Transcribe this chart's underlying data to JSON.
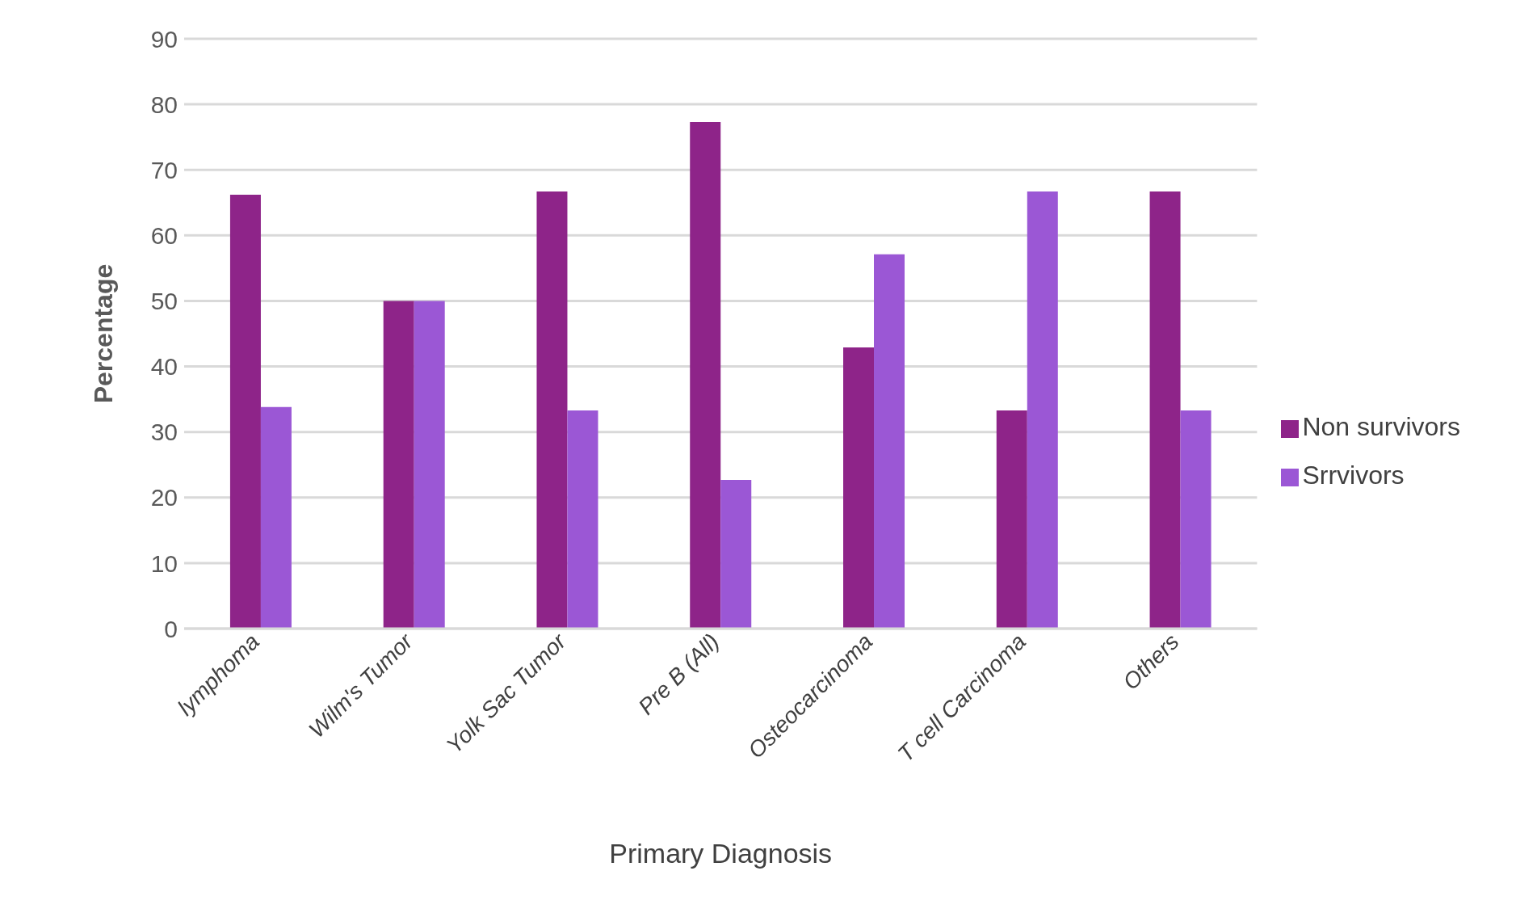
{
  "chart_data": {
    "type": "bar",
    "xlabel": "Primary Diagnosis",
    "ylabel": "Percentage",
    "categories": [
      "lymphoma",
      "Wilm's Tumor",
      "Yolk Sac Tumor",
      "Pre B (All)",
      "Osteocarcinoma",
      "T cell Carcinoma",
      "Others"
    ],
    "series": [
      {
        "name": "Non survivors",
        "color": "#8e2489",
        "values": [
          66.2,
          50,
          66.7,
          77.3,
          42.9,
          33.3,
          66.7
        ]
      },
      {
        "name": "Srrvivors",
        "color": "#9b57d5",
        "values": [
          33.8,
          50,
          33.3,
          22.7,
          57.1,
          66.7,
          33.3
        ]
      }
    ],
    "ylim": [
      0,
      90
    ],
    "yticks": [
      0,
      10,
      20,
      30,
      40,
      50,
      60,
      70,
      80,
      90
    ],
    "grid": "y",
    "legend": "right"
  }
}
